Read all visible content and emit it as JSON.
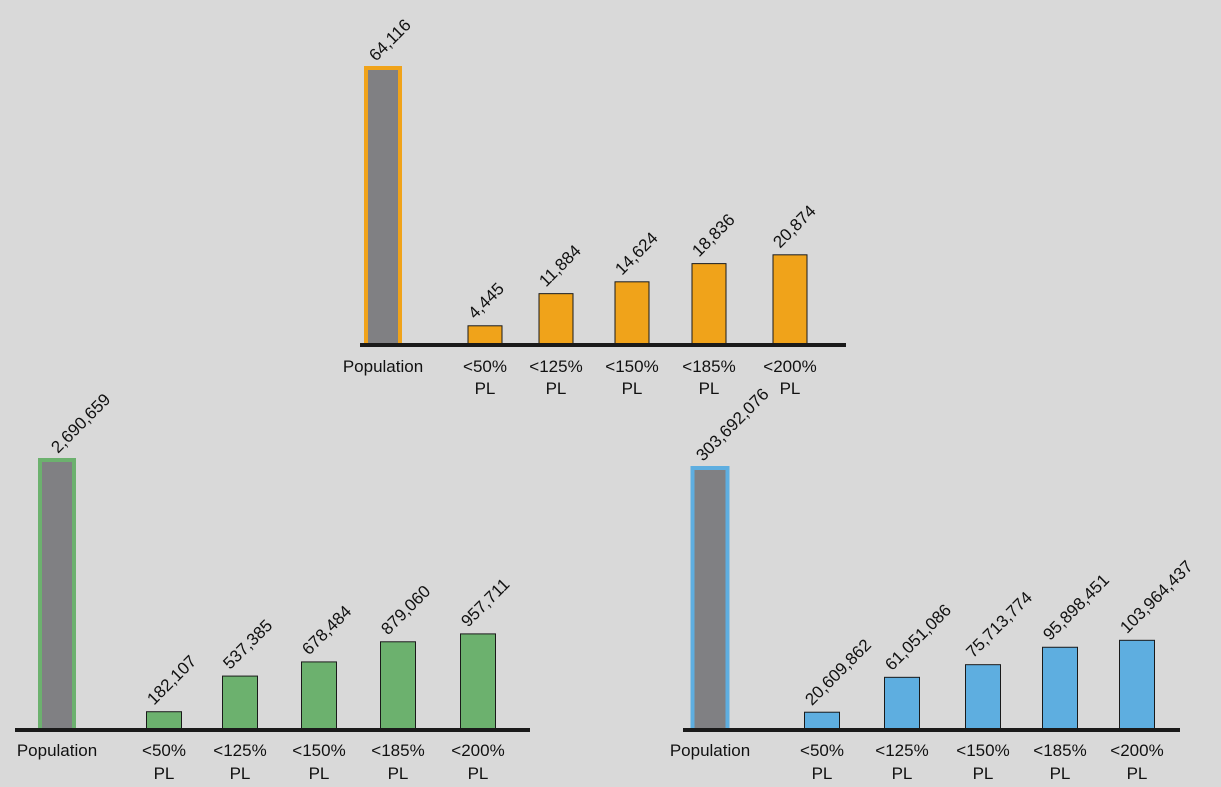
{
  "chart_data": [
    {
      "type": "bar",
      "categories": [
        {
          "line1": "Population",
          "line2": ""
        },
        {
          "line1": "<50%",
          "line2": "PL"
        },
        {
          "line1": "<125%",
          "line2": "PL"
        },
        {
          "line1": "<150%",
          "line2": "PL"
        },
        {
          "line1": "<185%",
          "line2": "PL"
        },
        {
          "line1": "<200%",
          "line2": "PL"
        }
      ],
      "values": [
        64116,
        4445,
        11884,
        14624,
        18836,
        20874
      ],
      "labels": [
        "64,116",
        "4,445",
        "11,884",
        "14,624",
        "18,836",
        "20,874"
      ],
      "colors": {
        "accent": "#f0a31a",
        "population_fill": "#808083"
      }
    },
    {
      "type": "bar",
      "categories": [
        {
          "line1": "Population",
          "line2": ""
        },
        {
          "line1": "<50%",
          "line2": "PL"
        },
        {
          "line1": "<125%",
          "line2": "PL"
        },
        {
          "line1": "<150%",
          "line2": "PL"
        },
        {
          "line1": "<185%",
          "line2": "PL"
        },
        {
          "line1": "<200%",
          "line2": "PL"
        }
      ],
      "values": [
        2690659,
        182107,
        537385,
        678484,
        879060,
        957711
      ],
      "labels": [
        "2,690,659",
        "182,107",
        "537,385",
        "678,484",
        "879,060",
        "957,711"
      ],
      "colors": {
        "accent": "#6cb16e",
        "population_fill": "#808083"
      }
    },
    {
      "type": "bar",
      "categories": [
        {
          "line1": "Population",
          "line2": ""
        },
        {
          "line1": "<50%",
          "line2": "PL"
        },
        {
          "line1": "<125%",
          "line2": "PL"
        },
        {
          "line1": "<150%",
          "line2": "PL"
        },
        {
          "line1": "<185%",
          "line2": "PL"
        },
        {
          "line1": "<200%",
          "line2": "PL"
        }
      ],
      "values": [
        303692076,
        20609862,
        61051086,
        75713774,
        95898451,
        103964437
      ],
      "labels": [
        "303,692,076",
        "20,609,862",
        "61,051,086",
        "75,713,774",
        "95,898,451",
        "103,964,437"
      ],
      "colors": {
        "accent": "#5eaee0",
        "population_fill": "#808083"
      }
    }
  ]
}
